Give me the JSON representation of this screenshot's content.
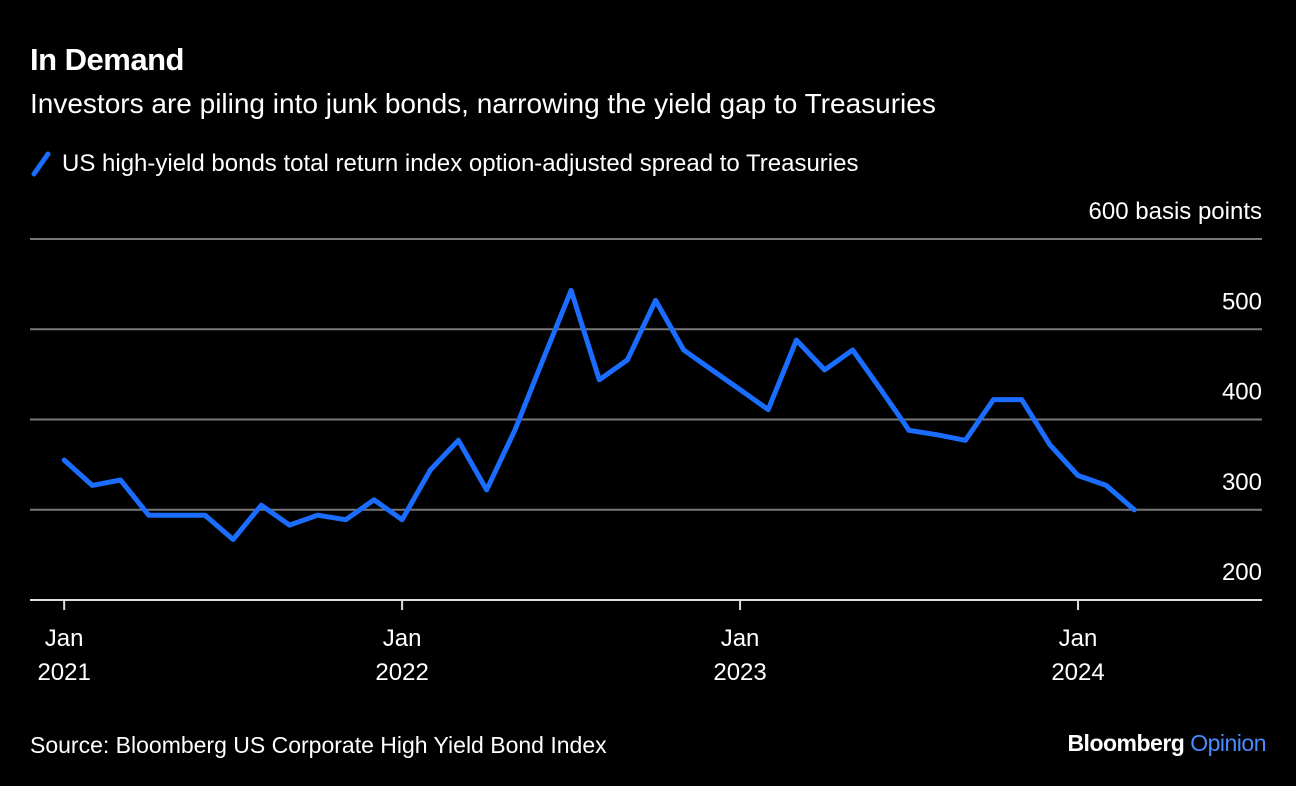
{
  "chart_data": {
    "type": "line",
    "title": "In Demand",
    "subtitle": "Investors are piling into junk bonds, narrowing the yield gap to Treasuries",
    "x": [
      "2021-01",
      "2021-02",
      "2021-03",
      "2021-04",
      "2021-05",
      "2021-06",
      "2021-07",
      "2021-08",
      "2021-09",
      "2021-10",
      "2021-11",
      "2021-12",
      "2022-01",
      "2022-02",
      "2022-03",
      "2022-04",
      "2022-05",
      "2022-06",
      "2022-07",
      "2022-08",
      "2022-09",
      "2022-10",
      "2022-11",
      "2022-12",
      "2023-01",
      "2023-02",
      "2023-03",
      "2023-04",
      "2023-05",
      "2023-06",
      "2023-07",
      "2023-08",
      "2023-09",
      "2023-10",
      "2023-11",
      "2023-12",
      "2024-01",
      "2024-02",
      "2024-03"
    ],
    "series": [
      {
        "name": "US high-yield bonds total return index option-adjusted spread to Treasuries",
        "color": "#1a6dff",
        "values": [
          355,
          327,
          333,
          294,
          294,
          294,
          267,
          305,
          283,
          294,
          289,
          311,
          289,
          344,
          377,
          322,
          388,
          466,
          543,
          444,
          466,
          532,
          477,
          455,
          433,
          411,
          488,
          455,
          477,
          433,
          388,
          383,
          377,
          422,
          422,
          372,
          338,
          327,
          300
        ]
      }
    ],
    "xlim": [
      "2020-12",
      "2024-07"
    ],
    "xticks": [
      {
        "value": "2021-01",
        "label": "Jan 2021"
      },
      {
        "value": "2022-01",
        "label": "Jan 2022"
      },
      {
        "value": "2023-01",
        "label": "Jan 2023"
      },
      {
        "value": "2024-01",
        "label": "Jan 2024"
      }
    ],
    "ylim": [
      200,
      600
    ],
    "yticks": [
      200,
      300,
      400,
      {
        "value": 600,
        "label": "600 basis points"
      },
      500
    ],
    "grid": true,
    "source": "Source: Bloomberg US Corporate High Yield Bond Index",
    "brand": [
      "Bloomberg",
      "Opinion"
    ]
  }
}
